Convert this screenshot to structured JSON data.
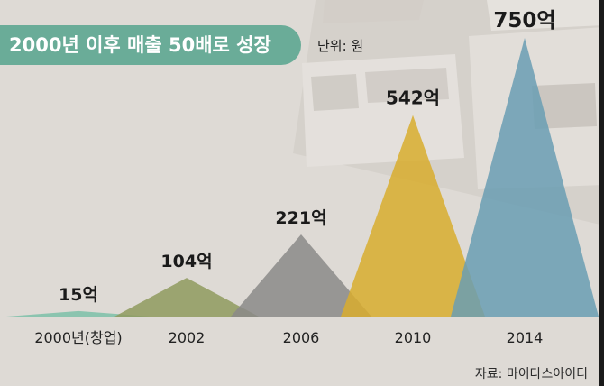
{
  "title": "2000년 이후 매출 50배로 성장",
  "unit": "단위: 원",
  "source": "자료: 마이다스아이티",
  "colors": {
    "title_bg": "#6aac98",
    "background": "#dedad5",
    "series": [
      "#7cc0a8",
      "#8f9a5e",
      "#8b8a88",
      "#d8ad2e",
      "#6a9db3"
    ]
  },
  "chart_data": {
    "type": "area",
    "shape": "triangle",
    "title": "2000년 이후 매출 50배로 성장",
    "unit": "단위: 원",
    "categories": [
      "2000년(창업)",
      "2002",
      "2006",
      "2010",
      "2014"
    ],
    "values": [
      15,
      104,
      221,
      542,
      750
    ],
    "value_labels": [
      "15억",
      "104억",
      "221억",
      "542억",
      "750억"
    ],
    "value_unit": "억",
    "ylim": [
      0,
      750
    ],
    "grid": false,
    "legend": "none"
  }
}
